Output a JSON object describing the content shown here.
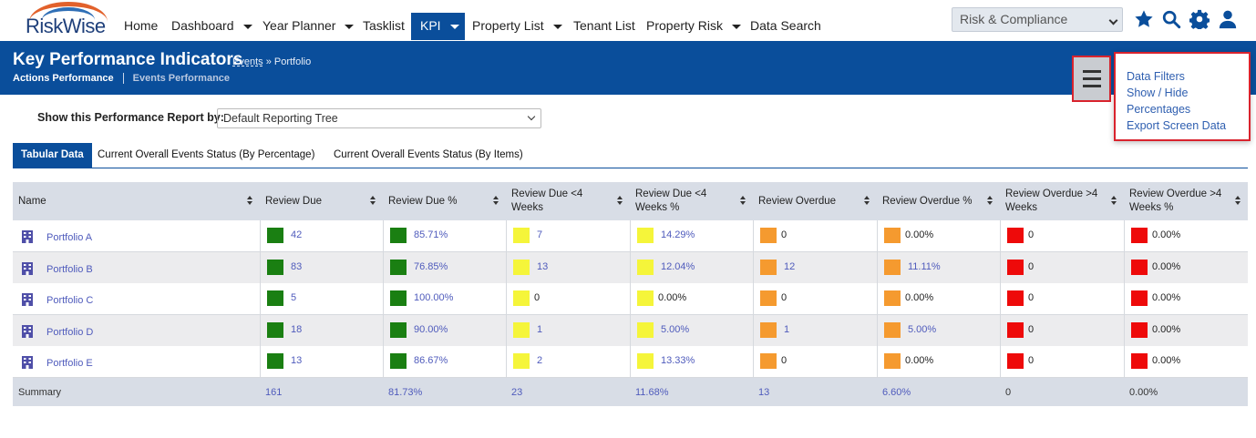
{
  "nav": {
    "logo_text": "RiskWise",
    "items": [
      {
        "label": "Home",
        "caret": false
      },
      {
        "label": "Dashboard",
        "caret": true
      },
      {
        "label": "Year Planner",
        "caret": true
      },
      {
        "label": "Tasklist",
        "caret": false
      },
      {
        "label": "KPI",
        "caret": true
      },
      {
        "label": "Property List",
        "caret": true
      },
      {
        "label": "Tenant List",
        "caret": false
      },
      {
        "label": "Property Risk",
        "caret": true
      },
      {
        "label": "Data Search",
        "caret": false
      }
    ],
    "module_select": "Risk & Compliance"
  },
  "header": {
    "title": "Key Performance Indicators",
    "breadcrumb_link": "Events",
    "breadcrumb_sep": " » ",
    "breadcrumb_current": "Portfolio",
    "subnav_active": "Actions Performance",
    "subnav_other": "Events Performance"
  },
  "menu": {
    "items": [
      "Data Filters",
      "Show / Hide",
      "Percentages",
      "Export Screen Data"
    ]
  },
  "report": {
    "label": "Show this Performance Report by:",
    "selected": "Default Reporting Tree"
  },
  "tabs": [
    "Tabular Data",
    "Current Overall Events Status (By Percentage)",
    "Current Overall Events Status (By Items)"
  ],
  "colors": {
    "brand": "#0a4e9b",
    "green": "#1a7f12",
    "yellow": "#f5f53a",
    "orange": "#f59a2f",
    "red": "#ee0a0a",
    "highlight": "#d9232d"
  },
  "table": {
    "columns": [
      "Name",
      "Review Due",
      "Review Due %",
      "Review Due <4 Weeks",
      "Review Due <4 Weeks %",
      "Review Overdue",
      "Review Overdue %",
      "Review Overdue >4 Weeks",
      "Review Overdue >4 Weeks %"
    ],
    "rows": [
      {
        "name": "Portfolio A",
        "values": [
          "42",
          "85.71%",
          "7",
          "14.29%",
          "0",
          "0.00%",
          "0",
          "0.00%"
        ]
      },
      {
        "name": "Portfolio B",
        "values": [
          "83",
          "76.85%",
          "13",
          "12.04%",
          "12",
          "11.11%",
          "0",
          "0.00%"
        ]
      },
      {
        "name": "Portfolio C",
        "values": [
          "5",
          "100.00%",
          "0",
          "0.00%",
          "0",
          "0.00%",
          "0",
          "0.00%"
        ]
      },
      {
        "name": "Portfolio D",
        "values": [
          "18",
          "90.00%",
          "1",
          "5.00%",
          "1",
          "5.00%",
          "0",
          "0.00%"
        ]
      },
      {
        "name": "Portfolio E",
        "values": [
          "13",
          "86.67%",
          "2",
          "13.33%",
          "0",
          "0.00%",
          "0",
          "0.00%"
        ]
      }
    ],
    "summary": {
      "label": "Summary",
      "values": [
        "161",
        "81.73%",
        "23",
        "11.68%",
        "13",
        "6.60%",
        "0",
        "0.00%"
      ]
    }
  }
}
